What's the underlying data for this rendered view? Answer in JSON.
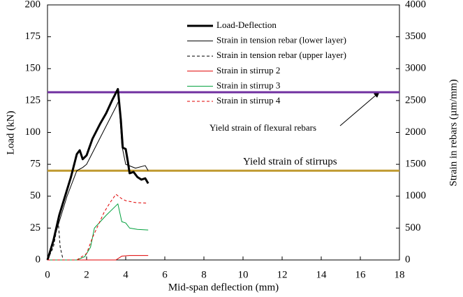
{
  "chart_data": {
    "type": "line",
    "xlabel": "Mid-span deflection  (mm)",
    "ylabel": "Load (kN)",
    "y2label": "Strain in rebars (µm/mm)",
    "xlim": [
      0,
      18
    ],
    "xticks": [
      0,
      2,
      4,
      6,
      8,
      10,
      12,
      14,
      16,
      18
    ],
    "ylim": [
      0,
      200
    ],
    "yticks": [
      0,
      25,
      50,
      75,
      100,
      125,
      150,
      175,
      200
    ],
    "y2lim": [
      0,
      4000
    ],
    "y2ticks": [
      0,
      500,
      1000,
      1500,
      2000,
      2500,
      3000,
      3500,
      4000
    ],
    "series": [
      {
        "name": "Load-Deflection",
        "color": "#000000",
        "linewidth": 3,
        "style": "solid",
        "axis": "y",
        "x": [
          0,
          0.3,
          0.6,
          0.9,
          1.2,
          1.5,
          1.65,
          1.8,
          2.0,
          2.3,
          2.7,
          3.0,
          3.3,
          3.6,
          3.75,
          3.85,
          4.0,
          4.1,
          4.2,
          4.4,
          4.6,
          4.8,
          5.0,
          5.15
        ],
        "values": [
          0,
          15,
          35,
          50,
          65,
          83,
          86,
          79,
          82,
          95,
          107,
          115,
          125,
          134,
          110,
          88,
          87,
          78,
          68,
          69,
          65,
          63,
          64,
          60
        ]
      },
      {
        "name": "Strain in tension rebar (lower layer)",
        "color": "#000000",
        "linewidth": 1,
        "style": "solid",
        "axis": "y2",
        "x": [
          0,
          0.5,
          1.0,
          1.5,
          1.8,
          2.0,
          2.5,
          3.0,
          3.5,
          3.65,
          3.8,
          4.0,
          4.5,
          5.0,
          5.15
        ],
        "values": [
          0,
          500,
          1000,
          1400,
          1450,
          1500,
          1800,
          2100,
          2400,
          2500,
          1800,
          1500,
          1440,
          1480,
          1400
        ]
      },
      {
        "name": "Strain in tension rebar (upper layer)",
        "color": "#000000",
        "linewidth": 1,
        "style": "dashed",
        "axis": "y2",
        "x": [
          0,
          0.3,
          0.55,
          0.65,
          0.8,
          5.15
        ],
        "values": [
          0,
          200,
          600,
          200,
          0,
          0
        ]
      },
      {
        "name": "Strain in stirrup 2",
        "color": "#e00000",
        "linewidth": 1,
        "style": "solid",
        "axis": "y2",
        "x": [
          0,
          3.5,
          3.8,
          4.2,
          5.15
        ],
        "values": [
          0,
          0,
          60,
          70,
          70
        ]
      },
      {
        "name": "Strain in stirrup 3",
        "color": "#00a03c",
        "linewidth": 1,
        "style": "solid",
        "axis": "y2",
        "x": [
          0,
          1.5,
          1.9,
          2.2,
          2.4,
          2.7,
          3.0,
          3.4,
          3.6,
          3.8,
          4.0,
          4.2,
          4.6,
          5.15
        ],
        "values": [
          0,
          0,
          50,
          200,
          500,
          600,
          700,
          820,
          880,
          600,
          580,
          500,
          480,
          470
        ]
      },
      {
        "name": "Strain in stirrup 4",
        "color": "#e00000",
        "linewidth": 1,
        "style": "dashed",
        "axis": "y2",
        "x": [
          0,
          1.5,
          2.0,
          2.3,
          2.6,
          2.9,
          3.2,
          3.5,
          3.8,
          4.0,
          4.5,
          5.15
        ],
        "values": [
          0,
          0,
          100,
          350,
          550,
          750,
          900,
          1030,
          960,
          930,
          900,
          890
        ]
      }
    ],
    "hlines": [
      {
        "label": "Yield strain of flexural rebars",
        "value": 2630,
        "axis": "y2",
        "color": "#7030a0"
      },
      {
        "label": "Yield strain of stirrups",
        "value": 1400,
        "axis": "y2",
        "color": "#c09a30"
      }
    ]
  }
}
